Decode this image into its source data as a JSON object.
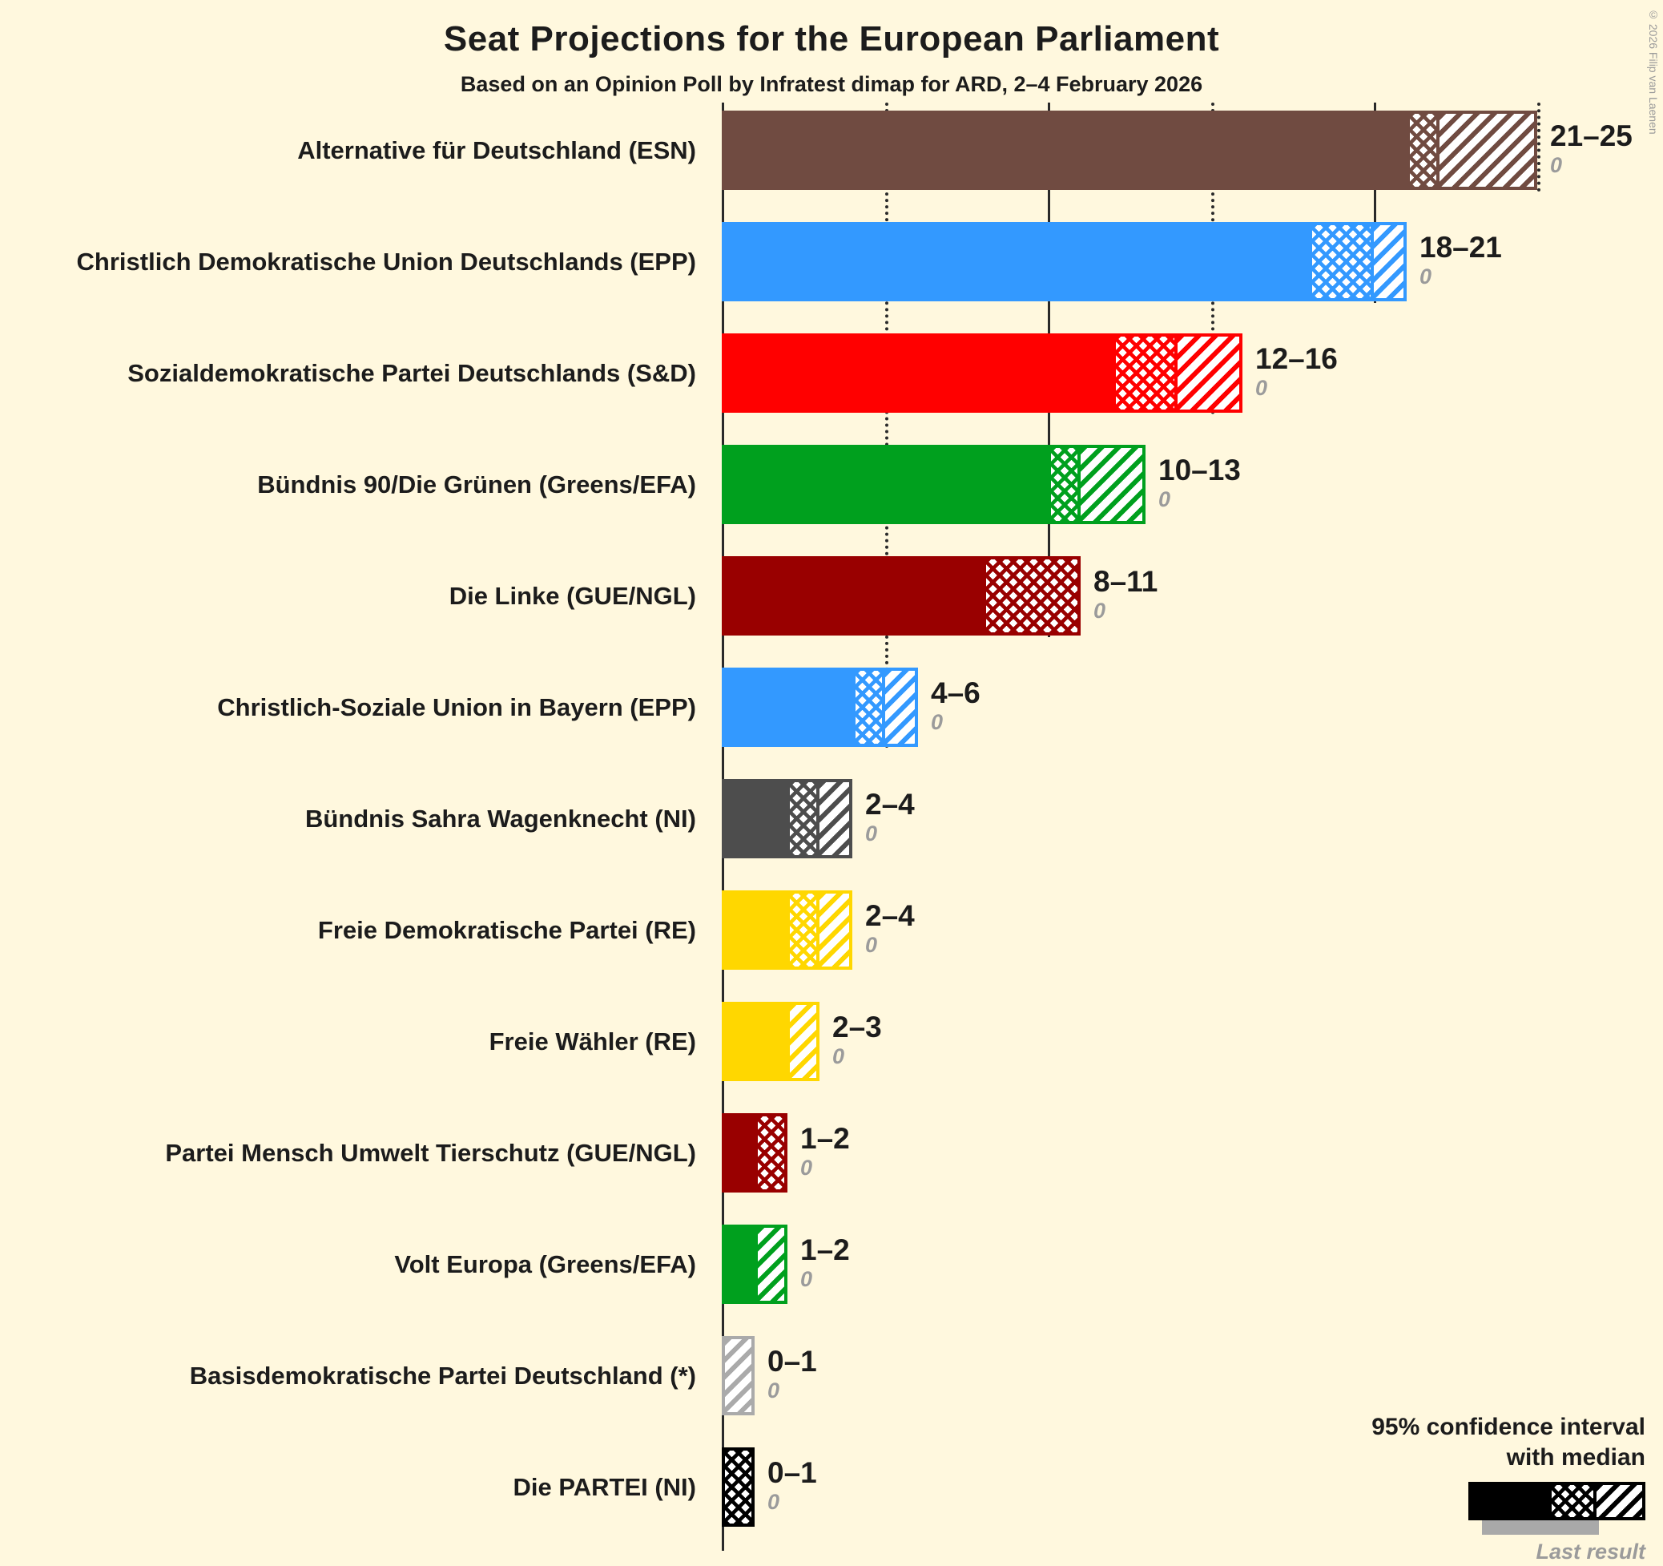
{
  "title": "Seat Projections for the European Parliament",
  "subtitle": "Based on an Opinion Poll by Infratest dimap for ARD, 2–4 February 2026",
  "copyright": "© 2026 Filip van Laenen",
  "legend": {
    "line1": "95% confidence interval",
    "line2": "with median",
    "last_result": "Last result"
  },
  "chart_data": {
    "type": "bar",
    "orientation": "horizontal",
    "unit": "seats",
    "x_axis": {
      "min": 0,
      "max": 25,
      "gridlines": [
        {
          "seats": 5,
          "style": "dotted"
        },
        {
          "seats": 10,
          "style": "solid"
        },
        {
          "seats": 15,
          "style": "dotted"
        },
        {
          "seats": 20,
          "style": "solid"
        },
        {
          "seats": 25,
          "style": "dotted"
        }
      ]
    },
    "parties": [
      {
        "label": "Alternative für Deutschland (ESN)",
        "ci_low": 21,
        "median": 22,
        "ci_high": 25,
        "range_label": "21–25",
        "last_result": 0,
        "color": "#704B41"
      },
      {
        "label": "Christlich Demokratische Union Deutschlands (EPP)",
        "ci_low": 18,
        "median": 20,
        "ci_high": 21,
        "range_label": "18–21",
        "last_result": 0,
        "color": "#3399FF"
      },
      {
        "label": "Sozialdemokratische Partei Deutschlands (S&D)",
        "ci_low": 12,
        "median": 14,
        "ci_high": 16,
        "range_label": "12–16",
        "last_result": 0,
        "color": "#FF0000"
      },
      {
        "label": "Bündnis 90/Die Grünen (Greens/EFA)",
        "ci_low": 10,
        "median": 11,
        "ci_high": 13,
        "range_label": "10–13",
        "last_result": 0,
        "color": "#00A01E"
      },
      {
        "label": "Die Linke (GUE/NGL)",
        "ci_low": 8,
        "median": 11,
        "ci_high": 11,
        "range_label": "8–11",
        "last_result": 0,
        "color": "#990000"
      },
      {
        "label": "Christlich-Soziale Union in Bayern (EPP)",
        "ci_low": 4,
        "median": 5,
        "ci_high": 6,
        "range_label": "4–6",
        "last_result": 0,
        "color": "#3399FF"
      },
      {
        "label": "Bündnis Sahra Wagenknecht (NI)",
        "ci_low": 2,
        "median": 3,
        "ci_high": 4,
        "range_label": "2–4",
        "last_result": 0,
        "color": "#4D4D4D"
      },
      {
        "label": "Freie Demokratische Partei (RE)",
        "ci_low": 2,
        "median": 3,
        "ci_high": 4,
        "range_label": "2–4",
        "last_result": 0,
        "color": "#FFD700"
      },
      {
        "label": "Freie Wähler (RE)",
        "ci_low": 2,
        "median": 2,
        "ci_high": 3,
        "range_label": "2–3",
        "last_result": 0,
        "color": "#FFD700"
      },
      {
        "label": "Partei Mensch Umwelt Tierschutz (GUE/NGL)",
        "ci_low": 1,
        "median": 2,
        "ci_high": 2,
        "range_label": "1–2",
        "last_result": 0,
        "color": "#990000"
      },
      {
        "label": "Volt Europa (Greens/EFA)",
        "ci_low": 1,
        "median": 1,
        "ci_high": 2,
        "range_label": "1–2",
        "last_result": 0,
        "color": "#00A01E"
      },
      {
        "label": "Basisdemokratische Partei Deutschland (*)",
        "ci_low": 0,
        "median": 0,
        "ci_high": 1,
        "range_label": "0–1",
        "last_result": 0,
        "color": "#AAAAAA"
      },
      {
        "label": "Die PARTEI (NI)",
        "ci_low": 0,
        "median": 1,
        "ci_high": 1,
        "range_label": "0–1",
        "last_result": 0,
        "color": "#000000"
      }
    ]
  }
}
